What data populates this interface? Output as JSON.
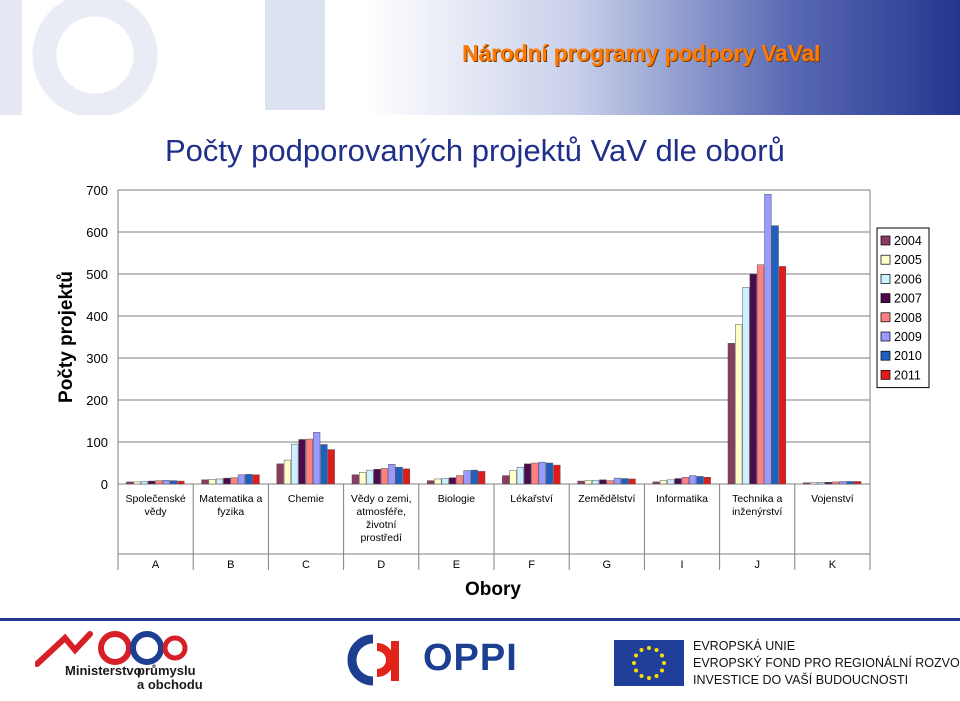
{
  "header": {
    "title": "Národní programy podpory VaVaI"
  },
  "main_title": "Počty podporovaných projektů VaV dle oborů",
  "footer": {
    "mpo_lines": [
      "Ministerstvo",
      "průmyslu",
      "a obchodu"
    ],
    "oppi_label": "OPPI",
    "eu_lines": [
      "EVROPSKÁ UNIE",
      "EVROPSKÝ FOND PRO REGIONÁLNÍ ROZVOJ",
      "INVESTICE DO VAŠÍ BUDOUCNOSTI"
    ]
  },
  "chart_data": {
    "type": "bar",
    "ylabel": "Počty projektů",
    "xlabel": "Obory",
    "ylim": [
      0,
      700
    ],
    "yticks": [
      0,
      100,
      200,
      300,
      400,
      500,
      600,
      700
    ],
    "grid": true,
    "legend_position": "right",
    "categories": [
      {
        "code": "A",
        "label": [
          "Společenské",
          "vědy"
        ]
      },
      {
        "code": "B",
        "label": [
          "Matematika a",
          "fyzika"
        ]
      },
      {
        "code": "C",
        "label": [
          "Chemie"
        ]
      },
      {
        "code": "D",
        "label": [
          "Vědy o zemi,",
          "atmosféře,",
          "životní",
          "prostředí"
        ]
      },
      {
        "code": "E",
        "label": [
          "Biologie"
        ]
      },
      {
        "code": "F",
        "label": [
          "Lékařství"
        ]
      },
      {
        "code": "G",
        "label": [
          "Zemědělství"
        ]
      },
      {
        "code": "I",
        "label": [
          "Informatika"
        ]
      },
      {
        "code": "J",
        "label": [
          "Technika a",
          "inženýrství"
        ]
      },
      {
        "code": "K",
        "label": [
          "Vojenství"
        ]
      }
    ],
    "series": [
      {
        "name": "2004",
        "color": "#8b3a62",
        "values": [
          5,
          10,
          48,
          22,
          8,
          20,
          7,
          5,
          335,
          3
        ]
      },
      {
        "name": "2005",
        "color": "#ffffcc",
        "values": [
          5,
          11,
          57,
          28,
          12,
          32,
          8,
          8,
          380,
          3
        ]
      },
      {
        "name": "2006",
        "color": "#ccf0ff",
        "values": [
          6,
          12,
          95,
          33,
          13,
          40,
          9,
          10,
          468,
          4
        ]
      },
      {
        "name": "2007",
        "color": "#4b0a4e",
        "values": [
          7,
          14,
          106,
          35,
          15,
          48,
          10,
          13,
          500,
          4
        ]
      },
      {
        "name": "2008",
        "color": "#ff8080",
        "values": [
          8,
          15,
          107,
          37,
          20,
          50,
          8,
          16,
          522,
          5
        ]
      },
      {
        "name": "2009",
        "color": "#9999ff",
        "values": [
          9,
          22,
          123,
          47,
          32,
          52,
          14,
          20,
          690,
          6
        ]
      },
      {
        "name": "2010",
        "color": "#1f5fbf",
        "values": [
          8,
          23,
          94,
          40,
          33,
          50,
          13,
          18,
          615,
          6
        ]
      },
      {
        "name": "2011",
        "color": "#e01b1b",
        "values": [
          7,
          22,
          82,
          36,
          30,
          45,
          12,
          16,
          518,
          6
        ]
      }
    ]
  }
}
